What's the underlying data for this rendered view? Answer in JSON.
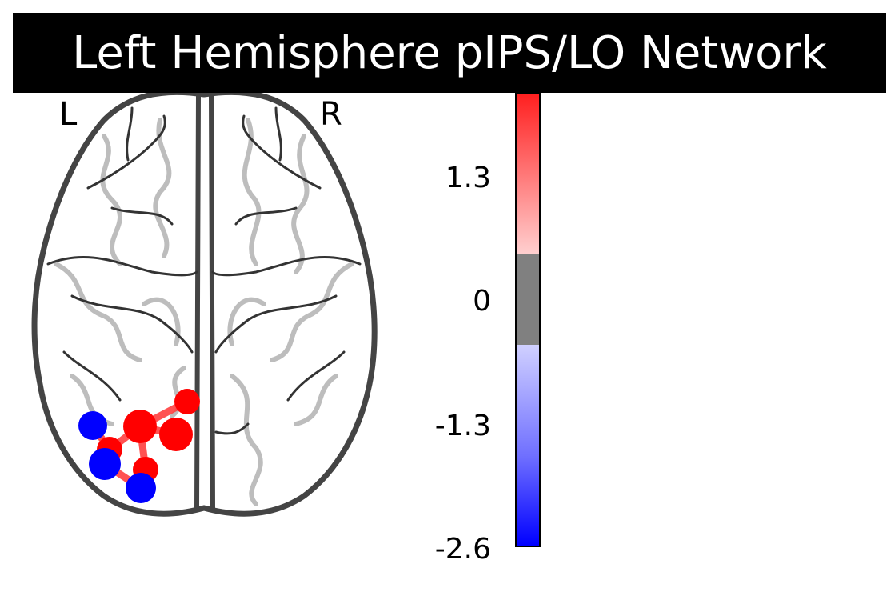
{
  "title": "Left Hemisphere pIPS/LO Network",
  "orientation": {
    "left": "L",
    "right": "R"
  },
  "colorbar": {
    "ticks": [
      "1.3",
      "0",
      "-1.3",
      "-2.6"
    ],
    "colors": {
      "high": "#ff2020",
      "mid_high": "#ffd0d0",
      "neutral": "#808080",
      "mid_low": "#d0d0ff",
      "low": "#0000ff"
    }
  },
  "nodes": [
    {
      "id": "n1",
      "color": "#ff0000"
    },
    {
      "id": "n2",
      "color": "#ff0000"
    },
    {
      "id": "n3",
      "color": "#ff0000"
    },
    {
      "id": "n4",
      "color": "#ff0000"
    },
    {
      "id": "n5",
      "color": "#ff0000"
    },
    {
      "id": "n6",
      "color": "#0000ff"
    },
    {
      "id": "n7",
      "color": "#0000ff"
    },
    {
      "id": "n8",
      "color": "#0000ff"
    }
  ],
  "edge_color": "#ff4040"
}
